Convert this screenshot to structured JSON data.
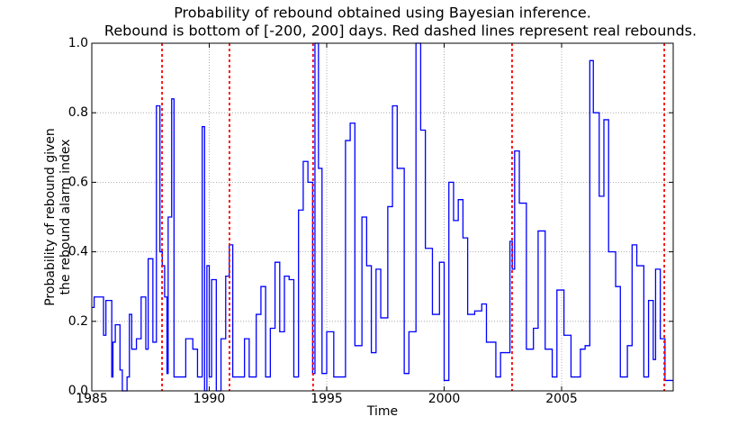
{
  "chart_data": {
    "type": "line",
    "title": [
      "Probability of rebound obtained using Bayesian inference.",
      "Rebound is bottom of [-200, 200] days. Red dashed lines represent real rebounds."
    ],
    "x_label": "Time",
    "y_label": [
      "Probability of rebound given",
      "the rebound alarm index"
    ],
    "xlim": [
      1985,
      2009.75
    ],
    "xticks": [
      1985,
      1990,
      1995,
      2000,
      2005
    ],
    "ylim": [
      0,
      1
    ],
    "yticks": [
      {
        "value": 0,
        "label": "0.0"
      },
      {
        "value": 0.2,
        "label": "0.2"
      },
      {
        "value": 0.4,
        "label": "0.4"
      },
      {
        "value": 0.6,
        "label": "0.6"
      },
      {
        "value": 0.8,
        "label": "0.8"
      },
      {
        "value": 1,
        "label": "1.0"
      }
    ],
    "grid": true,
    "drawstyle": "steps-post",
    "series": [
      {
        "color": "#0000ff",
        "x": [
          1985.0,
          1985.1,
          1985.4,
          1985.5,
          1985.6,
          1985.85,
          1985.9,
          1986.0,
          1986.2,
          1986.3,
          1986.5,
          1986.6,
          1986.7,
          1986.9,
          1987.1,
          1987.3,
          1987.4,
          1987.6,
          1987.75,
          1987.9,
          1988.0,
          1988.1,
          1988.2,
          1988.25,
          1988.4,
          1988.5,
          1989.0,
          1989.3,
          1989.5,
          1989.7,
          1989.8,
          1989.9,
          1990.0,
          1990.1,
          1990.3,
          1990.5,
          1990.7,
          1990.85,
          1991.0,
          1991.5,
          1991.7,
          1992.0,
          1992.2,
          1992.4,
          1992.6,
          1992.8,
          1993.0,
          1993.2,
          1993.4,
          1993.6,
          1993.8,
          1994.0,
          1994.2,
          1994.4,
          1994.5,
          1994.65,
          1994.8,
          1995.0,
          1995.3,
          1995.8,
          1996.0,
          1996.2,
          1996.5,
          1996.7,
          1996.9,
          1997.1,
          1997.3,
          1997.6,
          1997.8,
          1998.0,
          1998.3,
          1998.5,
          1998.8,
          1999.0,
          1999.2,
          1999.5,
          1999.8,
          2000.0,
          2000.2,
          2000.4,
          2000.6,
          2000.8,
          2001.0,
          2001.3,
          2001.6,
          2001.8,
          2002.2,
          2002.4,
          2002.8,
          2002.9,
          2003.0,
          2003.2,
          2003.5,
          2003.8,
          2004.0,
          2004.3,
          2004.6,
          2004.8,
          2005.1,
          2005.4,
          2005.8,
          2006.0,
          2006.2,
          2006.35,
          2006.6,
          2006.8,
          2007.0,
          2007.3,
          2007.5,
          2007.8,
          2008.0,
          2008.2,
          2008.5,
          2008.7,
          2008.9,
          2009.0,
          2009.2,
          2009.4,
          2009.75
        ],
        "values": [
          0.24,
          0.27,
          0.27,
          0.16,
          0.26,
          0.04,
          0.14,
          0.19,
          0.06,
          0.0,
          0.04,
          0.22,
          0.12,
          0.15,
          0.27,
          0.12,
          0.38,
          0.14,
          0.82,
          0.4,
          0.36,
          0.27,
          0.05,
          0.5,
          0.84,
          0.04,
          0.15,
          0.12,
          0.04,
          0.76,
          0.0,
          0.36,
          0.04,
          0.32,
          0.0,
          0.15,
          0.33,
          0.42,
          0.04,
          0.15,
          0.04,
          0.22,
          0.3,
          0.04,
          0.18,
          0.37,
          0.17,
          0.33,
          0.32,
          0.04,
          0.52,
          0.66,
          0.6,
          0.05,
          1.0,
          0.64,
          0.05,
          0.17,
          0.04,
          0.72,
          0.77,
          0.13,
          0.5,
          0.36,
          0.11,
          0.35,
          0.21,
          0.53,
          0.82,
          0.64,
          0.05,
          0.17,
          1.0,
          0.75,
          0.41,
          0.22,
          0.37,
          0.03,
          0.6,
          0.49,
          0.55,
          0.44,
          0.22,
          0.23,
          0.25,
          0.14,
          0.04,
          0.11,
          0.43,
          0.35,
          0.69,
          0.54,
          0.12,
          0.18,
          0.46,
          0.12,
          0.04,
          0.29,
          0.16,
          0.04,
          0.12,
          0.13,
          0.95,
          0.8,
          0.56,
          0.78,
          0.4,
          0.3,
          0.04,
          0.13,
          0.42,
          0.36,
          0.04,
          0.26,
          0.09,
          0.35,
          0.15,
          0.03,
          0.03
        ]
      }
    ],
    "vlines": {
      "color": "#ff0000",
      "x": [
        1987.99,
        1990.86,
        1994.42,
        2002.89,
        2009.37
      ]
    }
  }
}
